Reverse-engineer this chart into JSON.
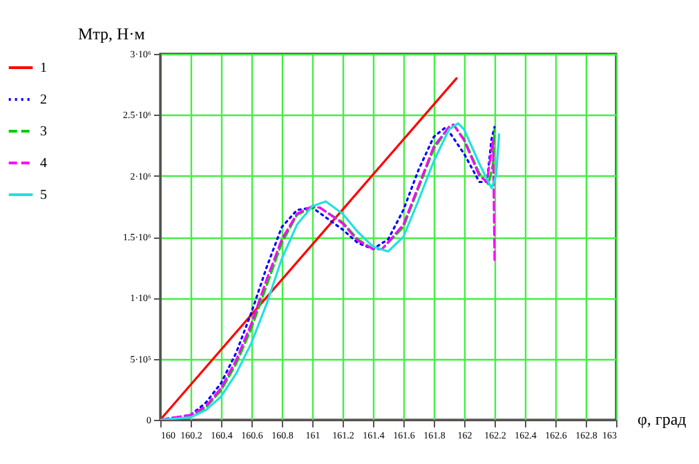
{
  "chart_data": {
    "type": "line",
    "xlabel": "φ, град",
    "ylabel": "Mтр, Н·м",
    "xlim": [
      160,
      163
    ],
    "xticks": [
      160,
      160.2,
      160.4,
      160.6,
      160.8,
      161,
      161.2,
      161.4,
      161.6,
      161.8,
      162,
      162.2,
      162.4,
      162.6,
      162.8,
      163
    ],
    "ylim": [
      0,
      3000000
    ],
    "yticks": [
      0,
      {
        "value": 500000,
        "label": "5·10⁵"
      },
      {
        "value": 1000000,
        "label": "1·10⁶"
      },
      {
        "value": 1500000,
        "label": "1.5·10⁶"
      },
      {
        "value": 2000000,
        "label": "2·10⁶"
      },
      {
        "value": 2500000,
        "label": "2.5·10⁶"
      },
      {
        "value": 3000000,
        "label": "3·10⁶"
      }
    ],
    "grid": true,
    "legend": "left",
    "series": [
      {
        "name": "1",
        "color": "#ff0000",
        "line_style": "solid",
        "x": [
          160,
          161.95
        ],
        "values": [
          0,
          2800000
        ]
      },
      {
        "name": "2",
        "color": "#0000ff",
        "line_style": "dotted",
        "x": [
          160,
          160.2,
          160.3,
          160.4,
          160.5,
          160.6,
          160.7,
          160.8,
          160.9,
          161.0,
          161.2,
          161.3,
          161.4,
          161.5,
          161.6,
          161.7,
          161.8,
          161.88,
          162.0,
          162.1,
          162.15,
          162.18,
          162.2
        ],
        "values": [
          0,
          40000,
          140000,
          300000,
          550000,
          880000,
          1250000,
          1580000,
          1720000,
          1740000,
          1560000,
          1450000,
          1400000,
          1480000,
          1720000,
          2050000,
          2320000,
          2400000,
          2180000,
          1950000,
          1950000,
          2300000,
          2400000
        ]
      },
      {
        "name": "3",
        "color": "#00cc00",
        "line_style": "dashed",
        "x": [
          160,
          160.2,
          160.3,
          160.4,
          160.5,
          160.6,
          160.7,
          160.8,
          160.9,
          161.0,
          161.05,
          161.2,
          161.3,
          161.4,
          161.46,
          161.6,
          161.7,
          161.8,
          161.9,
          161.93,
          162.0,
          162.1,
          162.16,
          162.19,
          162.2
        ],
        "values": [
          0,
          30000,
          100000,
          240000,
          460000,
          750000,
          1100000,
          1450000,
          1680000,
          1740000,
          1740000,
          1620000,
          1480000,
          1400000,
          1400000,
          1580000,
          1900000,
          2220000,
          2400000,
          2420000,
          2300000,
          2020000,
          1930000,
          2100000,
          2380000
        ]
      },
      {
        "name": "4",
        "color": "#ff00ff",
        "line_style": "dashed",
        "x": [
          160,
          160.2,
          160.3,
          160.4,
          160.5,
          160.6,
          160.7,
          160.8,
          160.9,
          161.0,
          161.05,
          161.2,
          161.3,
          161.4,
          161.46,
          161.6,
          161.7,
          161.8,
          161.9,
          161.93,
          162.0,
          162.1,
          162.15,
          162.19,
          162.2
        ],
        "values": [
          0,
          40000,
          110000,
          260000,
          490000,
          790000,
          1150000,
          1480000,
          1690000,
          1750000,
          1740000,
          1610000,
          1470000,
          1400000,
          1400000,
          1600000,
          1920000,
          2240000,
          2400000,
          2420000,
          2290000,
          2000000,
          1950000,
          2300000,
          1310000
        ]
      },
      {
        "name": "5",
        "color": "#22e0e0",
        "line_style": "solid",
        "x": [
          160,
          160.2,
          160.3,
          160.4,
          160.5,
          160.6,
          160.7,
          160.8,
          160.9,
          161.0,
          161.09,
          161.2,
          161.3,
          161.4,
          161.5,
          161.6,
          161.7,
          161.8,
          161.9,
          161.96,
          162.0,
          162.1,
          162.18,
          162.21,
          162.23
        ],
        "values": [
          0,
          20000,
          80000,
          190000,
          380000,
          630000,
          950000,
          1320000,
          1600000,
          1750000,
          1790000,
          1690000,
          1540000,
          1420000,
          1380000,
          1500000,
          1800000,
          2120000,
          2380000,
          2430000,
          2380000,
          2100000,
          1900000,
          2000000,
          2340000
        ]
      }
    ]
  }
}
